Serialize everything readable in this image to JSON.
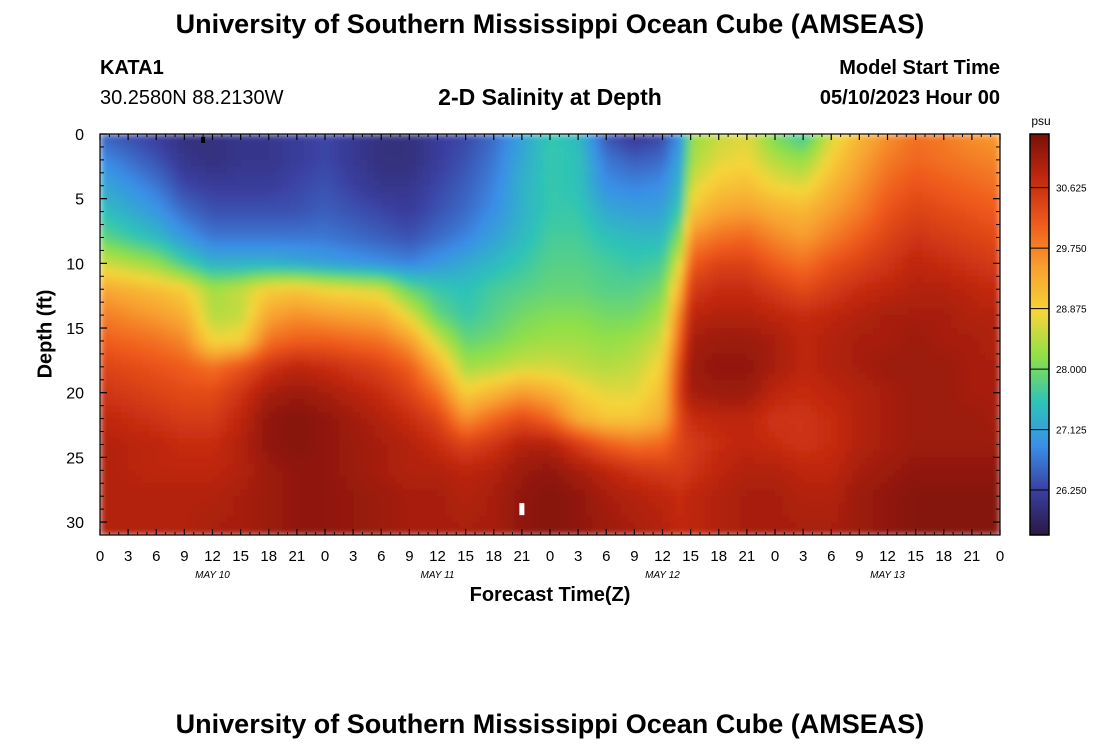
{
  "header": {
    "title": "University of Southern Mississippi Ocean Cube (AMSEAS)",
    "station_id": "KATA1",
    "station_coords": "30.2580N  88.2130W",
    "plot_subtitle": "2-D Salinity at Depth",
    "model_start_label": "Model Start Time",
    "model_start_value": "05/10/2023 Hour 00"
  },
  "footer": {
    "title": "University of Southern Mississippi Ocean Cube (AMSEAS)"
  },
  "colors": {
    "ramp": [
      "#2a1845",
      "#3a3fa0",
      "#3a8fe8",
      "#2ec4b6",
      "#8fe048",
      "#f5d53a",
      "#f8a030",
      "#ef5a1c",
      "#c22810",
      "#7a1008"
    ]
  },
  "chart_data": {
    "type": "heatmap",
    "title": "2-D Salinity at Depth",
    "xlabel": "Forecast Time(Z)",
    "ylabel": "Depth (ft)",
    "x_ticks": [
      "0",
      "3",
      "6",
      "9",
      "12",
      "15",
      "18",
      "21",
      "0",
      "3",
      "6",
      "9",
      "12",
      "15",
      "18",
      "21",
      "0",
      "3",
      "6",
      "9",
      "12",
      "15",
      "18",
      "21",
      "0",
      "3",
      "6",
      "9",
      "12",
      "15",
      "18",
      "21",
      "0"
    ],
    "date_labels": [
      "MAY 10",
      "MAY 11",
      "MAY 12",
      "MAY 13"
    ],
    "y_ticks": [
      0,
      5,
      10,
      15,
      20,
      25,
      30
    ],
    "ylim": [
      0,
      31
    ],
    "xlim_hours": [
      0,
      96
    ],
    "colorbar": {
      "unit": "psu",
      "ticks": [
        "30.625",
        "29.750",
        "28.875",
        "28.000",
        "27.125",
        "26.250"
      ],
      "range": [
        25.6,
        31.4
      ]
    },
    "depth_levels_ft": [
      0,
      2,
      4,
      6,
      8,
      10,
      12,
      14,
      16,
      18,
      20,
      22,
      24,
      26,
      28,
      31
    ],
    "hours": [
      0,
      6,
      9,
      12,
      15,
      18,
      21,
      24,
      30,
      33,
      36,
      39,
      42,
      45,
      48,
      51,
      54,
      57,
      60,
      62,
      63,
      66,
      69,
      72,
      75,
      78,
      81,
      84,
      87,
      90,
      93,
      96
    ],
    "salinity_psu": [
      [
        26.5,
        26.2,
        26.0,
        26.0,
        26.1,
        26.1,
        26.2,
        26.3,
        26.0,
        26.0,
        26.2,
        26.3,
        26.6,
        27.1,
        27.6,
        27.4,
        26.4,
        26.1,
        26.3,
        27.0,
        28.2,
        28.5,
        28.7,
        28.0,
        27.6,
        28.6,
        29.2,
        29.6,
        29.9,
        29.8,
        29.6,
        29.5
      ],
      [
        26.9,
        26.4,
        26.1,
        26.0,
        26.1,
        26.1,
        26.2,
        26.3,
        26.0,
        26.0,
        26.2,
        26.4,
        26.7,
        27.2,
        27.6,
        27.5,
        26.7,
        26.5,
        26.6,
        27.2,
        28.3,
        28.7,
        28.8,
        28.4,
        28.2,
        28.9,
        29.4,
        29.8,
        30.0,
        29.9,
        29.8,
        29.7
      ],
      [
        27.2,
        26.7,
        26.3,
        26.2,
        26.2,
        26.2,
        26.3,
        26.4,
        26.1,
        26.1,
        26.3,
        26.5,
        26.8,
        27.3,
        27.6,
        27.5,
        26.9,
        26.8,
        26.9,
        27.4,
        28.6,
        29.0,
        29.1,
        28.8,
        28.7,
        29.2,
        29.6,
        30.0,
        30.2,
        30.1,
        30.0,
        29.9
      ],
      [
        27.5,
        27.0,
        26.6,
        26.4,
        26.4,
        26.4,
        26.4,
        26.5,
        26.3,
        26.2,
        26.4,
        26.6,
        26.9,
        27.3,
        27.6,
        27.6,
        27.2,
        27.1,
        27.1,
        27.7,
        29.0,
        29.4,
        29.5,
        29.3,
        29.2,
        29.5,
        29.8,
        30.2,
        30.4,
        30.3,
        30.2,
        30.1
      ],
      [
        27.9,
        27.4,
        27.0,
        26.7,
        26.7,
        26.7,
        26.7,
        26.7,
        26.5,
        26.4,
        26.6,
        26.8,
        27.1,
        27.4,
        27.7,
        27.7,
        27.5,
        27.4,
        27.4,
        28.2,
        29.6,
        29.9,
        30.0,
        29.7,
        29.5,
        29.8,
        30.1,
        30.4,
        30.6,
        30.5,
        30.4,
        30.3
      ],
      [
        28.6,
        28.2,
        27.7,
        27.3,
        27.3,
        27.3,
        27.2,
        27.1,
        26.9,
        26.8,
        27.0,
        27.2,
        27.4,
        27.6,
        27.8,
        27.8,
        27.7,
        27.6,
        27.7,
        28.8,
        30.1,
        30.4,
        30.4,
        30.1,
        29.9,
        30.2,
        30.4,
        30.6,
        30.8,
        30.7,
        30.6,
        30.5
      ],
      [
        29.4,
        29.1,
        28.9,
        28.3,
        28.5,
        28.9,
        29.0,
        28.8,
        28.6,
        27.9,
        27.6,
        27.5,
        27.7,
        27.8,
        27.9,
        27.9,
        27.8,
        27.8,
        28.0,
        29.4,
        30.5,
        30.7,
        30.7,
        30.5,
        30.3,
        30.5,
        30.7,
        30.8,
        30.9,
        30.9,
        30.8,
        30.7
      ],
      [
        29.8,
        29.5,
        29.3,
        28.4,
        28.5,
        29.4,
        29.6,
        29.5,
        29.3,
        28.7,
        27.9,
        27.6,
        27.8,
        28.0,
        28.1,
        28.1,
        28.0,
        28.0,
        28.3,
        29.9,
        30.8,
        30.9,
        30.9,
        30.8,
        30.7,
        30.8,
        30.9,
        31.0,
        31.0,
        31.0,
        30.9,
        30.9
      ],
      [
        30.1,
        29.9,
        29.7,
        28.8,
        28.9,
        29.9,
        30.1,
        30.1,
        29.9,
        29.5,
        28.6,
        27.9,
        28.0,
        28.2,
        28.3,
        28.3,
        28.2,
        28.3,
        28.6,
        30.2,
        31.0,
        31.1,
        31.1,
        31.0,
        30.8,
        30.9,
        31.0,
        31.0,
        31.1,
        31.0,
        31.0,
        30.9
      ],
      [
        30.4,
        30.2,
        30.1,
        29.9,
        30.2,
        30.6,
        30.8,
        30.7,
        30.4,
        30.1,
        29.3,
        28.3,
        28.4,
        28.6,
        28.6,
        28.5,
        28.4,
        28.5,
        28.9,
        30.5,
        31.1,
        31.2,
        31.2,
        31.0,
        30.8,
        30.9,
        31.0,
        31.1,
        31.1,
        31.1,
        31.0,
        31.0
      ],
      [
        30.6,
        30.4,
        30.3,
        30.3,
        30.6,
        31.0,
        31.1,
        31.0,
        30.7,
        30.4,
        29.9,
        28.9,
        29.2,
        29.5,
        29.3,
        28.9,
        28.7,
        28.7,
        29.1,
        30.6,
        31.0,
        31.1,
        31.1,
        30.8,
        30.7,
        30.8,
        30.9,
        31.0,
        31.1,
        31.1,
        31.0,
        31.0
      ],
      [
        30.8,
        30.6,
        30.5,
        30.5,
        30.8,
        31.2,
        31.3,
        31.2,
        30.9,
        30.7,
        30.4,
        29.6,
        30.0,
        30.3,
        30.0,
        29.3,
        29.0,
        29.0,
        29.3,
        30.4,
        30.7,
        30.8,
        30.8,
        30.6,
        30.6,
        30.7,
        30.9,
        31.0,
        31.1,
        31.1,
        31.1,
        31.0
      ],
      [
        30.9,
        30.8,
        30.7,
        30.7,
        30.9,
        31.2,
        31.3,
        31.2,
        31.0,
        30.9,
        30.7,
        30.4,
        30.6,
        30.9,
        30.9,
        30.5,
        30.1,
        29.9,
        30.0,
        30.4,
        30.5,
        30.7,
        30.8,
        30.7,
        30.6,
        30.7,
        30.9,
        31.0,
        31.1,
        31.1,
        31.1,
        31.1
      ],
      [
        30.9,
        30.8,
        30.8,
        30.8,
        30.9,
        31.1,
        31.2,
        31.2,
        31.0,
        30.9,
        30.9,
        30.8,
        30.9,
        31.1,
        31.2,
        31.0,
        30.8,
        30.6,
        30.5,
        30.5,
        30.6,
        30.8,
        30.9,
        30.9,
        30.8,
        30.8,
        31.0,
        31.1,
        31.2,
        31.2,
        31.2,
        31.2
      ],
      [
        30.9,
        30.9,
        30.9,
        30.9,
        31.0,
        31.1,
        31.2,
        31.2,
        31.1,
        31.0,
        31.0,
        30.9,
        31.0,
        31.2,
        31.3,
        31.2,
        31.0,
        30.9,
        30.8,
        30.7,
        30.8,
        30.9,
        31.0,
        31.0,
        30.9,
        30.9,
        31.1,
        31.2,
        31.3,
        31.3,
        31.3,
        31.3
      ],
      [
        30.9,
        30.9,
        30.9,
        31.0,
        31.0,
        31.1,
        31.2,
        31.2,
        31.1,
        31.0,
        31.0,
        31.0,
        31.0,
        31.2,
        31.3,
        31.2,
        31.1,
        31.0,
        30.9,
        30.8,
        30.8,
        30.9,
        31.0,
        31.0,
        31.0,
        31.0,
        31.1,
        31.2,
        31.3,
        31.3,
        31.3,
        31.3
      ]
    ],
    "markers": [
      {
        "type": "max-marker",
        "hour": 45,
        "depth_ft": 29.0,
        "color": "#ffffff"
      },
      {
        "type": "min-marker",
        "hour": 11,
        "depth_ft": 0.3,
        "color": "#000000"
      }
    ]
  }
}
